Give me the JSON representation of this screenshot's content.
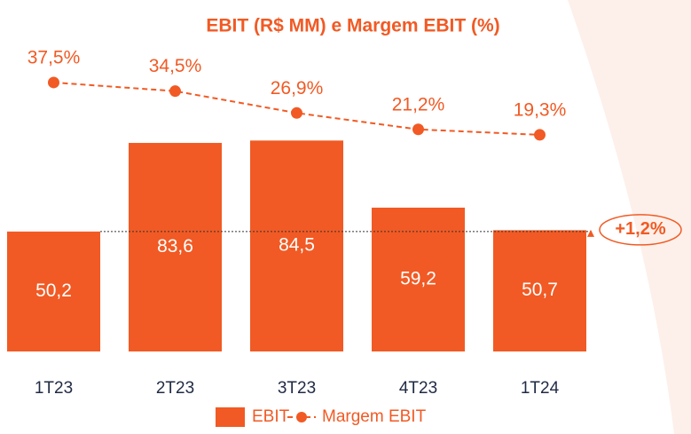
{
  "chart_data": {
    "type": "bar_line",
    "title": "EBIT (R$ MM) e Margem EBIT (%)",
    "categories": [
      "1T23",
      "2T23",
      "3T23",
      "4T23",
      "1T24"
    ],
    "series": [
      {
        "name": "EBIT",
        "type": "bar",
        "color": "#f15a24",
        "values": [
          50.2,
          83.6,
          84.5,
          59.2,
          50.7
        ],
        "value_labels": [
          "50,2",
          "83,6",
          "84,5",
          "59,2",
          "50,7"
        ]
      },
      {
        "name": "Margem EBIT",
        "type": "line",
        "axis": "y2",
        "color": "#f15a24",
        "values": [
          37.5,
          34.5,
          26.9,
          21.2,
          19.3
        ],
        "value_labels": [
          "37,5%",
          "34,5%",
          "26,9%",
          "21,2%",
          "19,3%"
        ]
      }
    ],
    "ylim": [
      5,
      100
    ],
    "y2lim": [
      0,
      60
    ],
    "annotation": "+1,2%",
    "legend": "bottom"
  }
}
